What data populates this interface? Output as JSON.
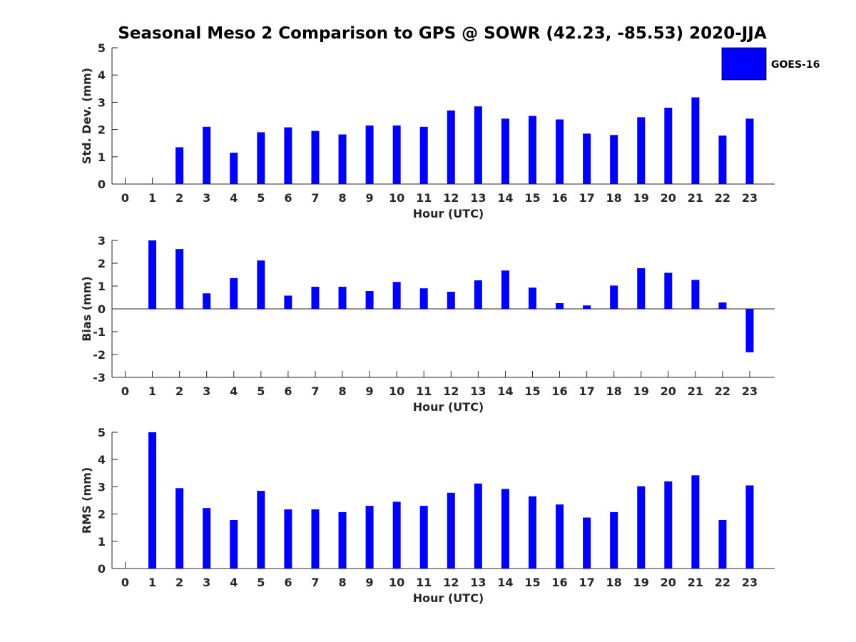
{
  "title": "Seasonal Meso 2 Comparison to GPS @ SOWR (42.23, -85.53) 2020-JJA",
  "legend": {
    "label": "GOES-16",
    "color": "#0000ff"
  },
  "chart_data": [
    {
      "type": "bar",
      "xlabel": "Hour (UTC)",
      "ylabel": "Std. Dev. (mm)",
      "ylim": [
        0,
        5
      ],
      "yticks": [
        "0",
        "1",
        "2",
        "3",
        "4",
        "5"
      ],
      "categories": [
        "0",
        "1",
        "2",
        "3",
        "4",
        "5",
        "6",
        "7",
        "8",
        "9",
        "10",
        "11",
        "12",
        "13",
        "14",
        "15",
        "16",
        "17",
        "18",
        "19",
        "20",
        "21",
        "22",
        "23"
      ],
      "series": [
        {
          "name": "GOES-16",
          "values": [
            null,
            null,
            1.35,
            2.1,
            1.15,
            1.9,
            2.08,
            1.95,
            1.82,
            2.15,
            2.15,
            2.1,
            2.7,
            2.85,
            2.4,
            2.5,
            2.37,
            1.85,
            1.8,
            2.45,
            2.8,
            3.18,
            1.78,
            2.4
          ]
        }
      ]
    },
    {
      "type": "bar",
      "xlabel": "Hour (UTC)",
      "ylabel": "Bias (mm)",
      "ylim": [
        -3,
        3
      ],
      "yticks": [
        "-3",
        "-2",
        "-1",
        "0",
        "1",
        "2",
        "3"
      ],
      "categories": [
        "0",
        "1",
        "2",
        "3",
        "4",
        "5",
        "6",
        "7",
        "8",
        "9",
        "10",
        "11",
        "12",
        "13",
        "14",
        "15",
        "16",
        "17",
        "18",
        "19",
        "20",
        "21",
        "22",
        "23"
      ],
      "series": [
        {
          "name": "GOES-16",
          "values": [
            null,
            3.0,
            2.62,
            0.68,
            1.35,
            2.12,
            0.58,
            0.97,
            0.97,
            0.78,
            1.18,
            0.9,
            0.75,
            1.25,
            1.68,
            0.93,
            0.25,
            0.15,
            1.02,
            1.78,
            1.58,
            1.27,
            0.28,
            -1.9
          ]
        }
      ]
    },
    {
      "type": "bar",
      "xlabel": "Hour (UTC)",
      "ylabel": "RMS (mm)",
      "ylim": [
        0,
        5
      ],
      "yticks": [
        "0",
        "1",
        "2",
        "3",
        "4",
        "5"
      ],
      "categories": [
        "0",
        "1",
        "2",
        "3",
        "4",
        "5",
        "6",
        "7",
        "8",
        "9",
        "10",
        "11",
        "12",
        "13",
        "14",
        "15",
        "16",
        "17",
        "18",
        "19",
        "20",
        "21",
        "22",
        "23"
      ],
      "series": [
        {
          "name": "GOES-16",
          "values": [
            null,
            5.0,
            2.95,
            2.22,
            1.78,
            2.85,
            2.17,
            2.17,
            2.07,
            2.3,
            2.45,
            2.3,
            2.78,
            3.12,
            2.92,
            2.65,
            2.35,
            1.87,
            2.07,
            3.02,
            3.2,
            3.42,
            1.78,
            3.05
          ]
        }
      ]
    }
  ]
}
